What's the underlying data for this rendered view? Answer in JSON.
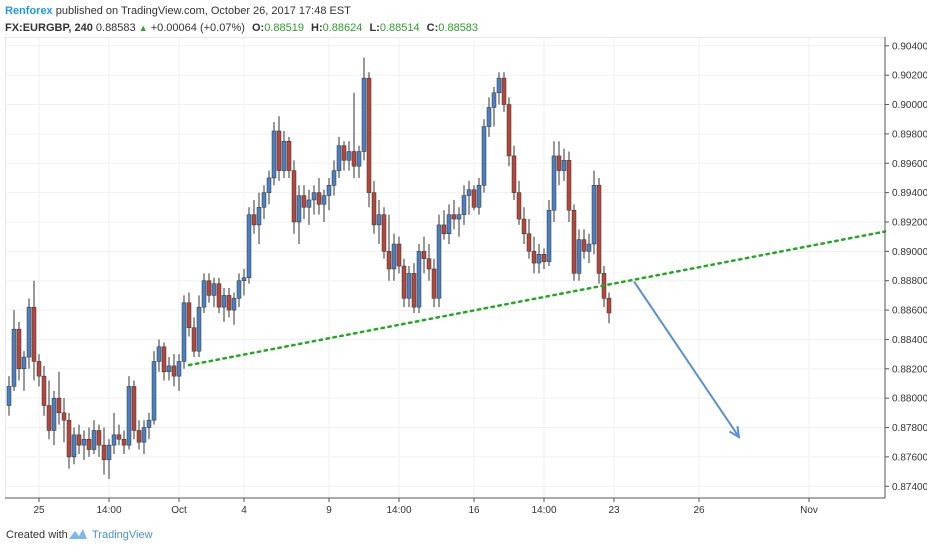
{
  "header": {
    "author": "Renforex",
    "published_text": "published on TradingView.com, October 26, 2017 17:48 EST"
  },
  "ticker": {
    "symbol": "FX:EURGBP, 240",
    "last": "0.88583",
    "change": "+0.00064 (+0.07%)",
    "o_label": "O:",
    "o": "0.88519",
    "h_label": "H:",
    "h": "0.88624",
    "l_label": "L:",
    "l": "0.88514",
    "c_label": "C:",
    "c": "0.88583"
  },
  "footer": {
    "created_with": "Created with",
    "brand": "TradingView"
  },
  "colors": {
    "up": "#4a7fc1",
    "down": "#b5463c",
    "trendline": "#22aa22",
    "arrow": "#5b8fd6",
    "grid": "#f0f0f0"
  },
  "chart_data": {
    "type": "candlestick",
    "title": "",
    "ylim": [
      0.8732,
      0.9046
    ],
    "y_ticks": [
      "0.90400",
      "0.90200",
      "0.90000",
      "0.89800",
      "0.89600",
      "0.89400",
      "0.89200",
      "0.89000",
      "0.88800",
      "0.88600",
      "0.88400",
      "0.88200",
      "0.88000",
      "0.87800",
      "0.87600",
      "0.87400"
    ],
    "x_ticks": [
      {
        "label": "25",
        "bar": 6
      },
      {
        "label": "14:00",
        "bar": 20
      },
      {
        "label": "Oct",
        "bar": 34
      },
      {
        "label": "4",
        "bar": 47
      },
      {
        "label": "9",
        "bar": 64
      },
      {
        "label": "14:00",
        "bar": 78
      },
      {
        "label": "16",
        "bar": 93
      },
      {
        "label": "14:00",
        "bar": 107
      },
      {
        "label": "23",
        "bar": 121
      },
      {
        "label": "26",
        "bar": 138
      },
      {
        "label": "Nov",
        "bar": 160
      }
    ],
    "candles": [
      {
        "o": 0.8795,
        "h": 0.8815,
        "l": 0.8788,
        "c": 0.8808
      },
      {
        "o": 0.8808,
        "h": 0.886,
        "l": 0.8805,
        "c": 0.8847
      },
      {
        "o": 0.8847,
        "h": 0.8852,
        "l": 0.8812,
        "c": 0.882
      },
      {
        "o": 0.882,
        "h": 0.8832,
        "l": 0.8805,
        "c": 0.8828
      },
      {
        "o": 0.8828,
        "h": 0.8868,
        "l": 0.882,
        "c": 0.8862
      },
      {
        "o": 0.8862,
        "h": 0.888,
        "l": 0.8812,
        "c": 0.8825
      },
      {
        "o": 0.8825,
        "h": 0.883,
        "l": 0.8808,
        "c": 0.8815
      },
      {
        "o": 0.8815,
        "h": 0.8822,
        "l": 0.8788,
        "c": 0.8795
      },
      {
        "o": 0.8795,
        "h": 0.8812,
        "l": 0.8772,
        "c": 0.8778
      },
      {
        "o": 0.8778,
        "h": 0.8805,
        "l": 0.8768,
        "c": 0.88
      },
      {
        "o": 0.88,
        "h": 0.8818,
        "l": 0.8782,
        "c": 0.879
      },
      {
        "o": 0.879,
        "h": 0.88,
        "l": 0.877,
        "c": 0.8785
      },
      {
        "o": 0.8785,
        "h": 0.879,
        "l": 0.8752,
        "c": 0.876
      },
      {
        "o": 0.876,
        "h": 0.878,
        "l": 0.8755,
        "c": 0.8775
      },
      {
        "o": 0.8775,
        "h": 0.8782,
        "l": 0.8762,
        "c": 0.8768
      },
      {
        "o": 0.8768,
        "h": 0.8778,
        "l": 0.8758,
        "c": 0.8772
      },
      {
        "o": 0.8772,
        "h": 0.878,
        "l": 0.876,
        "c": 0.8765
      },
      {
        "o": 0.8765,
        "h": 0.8785,
        "l": 0.8762,
        "c": 0.8778
      },
      {
        "o": 0.8778,
        "h": 0.8782,
        "l": 0.876,
        "c": 0.8768
      },
      {
        "o": 0.8768,
        "h": 0.878,
        "l": 0.8748,
        "c": 0.8758
      },
      {
        "o": 0.8758,
        "h": 0.8772,
        "l": 0.8745,
        "c": 0.8768
      },
      {
        "o": 0.8768,
        "h": 0.879,
        "l": 0.8762,
        "c": 0.8775
      },
      {
        "o": 0.8775,
        "h": 0.8782,
        "l": 0.8768,
        "c": 0.8772
      },
      {
        "o": 0.8772,
        "h": 0.8778,
        "l": 0.8762,
        "c": 0.8768
      },
      {
        "o": 0.8768,
        "h": 0.8815,
        "l": 0.8765,
        "c": 0.8808
      },
      {
        "o": 0.8808,
        "h": 0.8812,
        "l": 0.8772,
        "c": 0.8778
      },
      {
        "o": 0.8778,
        "h": 0.8785,
        "l": 0.8765,
        "c": 0.877
      },
      {
        "o": 0.877,
        "h": 0.8785,
        "l": 0.8762,
        "c": 0.878
      },
      {
        "o": 0.878,
        "h": 0.879,
        "l": 0.8772,
        "c": 0.8785
      },
      {
        "o": 0.8785,
        "h": 0.8832,
        "l": 0.8782,
        "c": 0.8825
      },
      {
        "o": 0.8825,
        "h": 0.884,
        "l": 0.8818,
        "c": 0.8835
      },
      {
        "o": 0.8835,
        "h": 0.8838,
        "l": 0.8812,
        "c": 0.8818
      },
      {
        "o": 0.8818,
        "h": 0.8828,
        "l": 0.8812,
        "c": 0.8822
      },
      {
        "o": 0.8822,
        "h": 0.883,
        "l": 0.8808,
        "c": 0.8815
      },
      {
        "o": 0.8815,
        "h": 0.883,
        "l": 0.8805,
        "c": 0.8825
      },
      {
        "o": 0.8825,
        "h": 0.887,
        "l": 0.882,
        "c": 0.8865
      },
      {
        "o": 0.8865,
        "h": 0.8872,
        "l": 0.8842,
        "c": 0.8848
      },
      {
        "o": 0.8848,
        "h": 0.8855,
        "l": 0.8828,
        "c": 0.8832
      },
      {
        "o": 0.8832,
        "h": 0.887,
        "l": 0.8828,
        "c": 0.8862
      },
      {
        "o": 0.8862,
        "h": 0.8885,
        "l": 0.8858,
        "c": 0.888
      },
      {
        "o": 0.888,
        "h": 0.8885,
        "l": 0.8865,
        "c": 0.887
      },
      {
        "o": 0.887,
        "h": 0.8882,
        "l": 0.8862,
        "c": 0.8878
      },
      {
        "o": 0.8878,
        "h": 0.8882,
        "l": 0.8858,
        "c": 0.8862
      },
      {
        "o": 0.8862,
        "h": 0.8875,
        "l": 0.8852,
        "c": 0.887
      },
      {
        "o": 0.887,
        "h": 0.8875,
        "l": 0.8855,
        "c": 0.886
      },
      {
        "o": 0.886,
        "h": 0.8872,
        "l": 0.885,
        "c": 0.8868
      },
      {
        "o": 0.8868,
        "h": 0.8885,
        "l": 0.8862,
        "c": 0.888
      },
      {
        "o": 0.888,
        "h": 0.8888,
        "l": 0.887,
        "c": 0.8882
      },
      {
        "o": 0.8882,
        "h": 0.893,
        "l": 0.8878,
        "c": 0.8925
      },
      {
        "o": 0.8925,
        "h": 0.8935,
        "l": 0.8912,
        "c": 0.8918
      },
      {
        "o": 0.8918,
        "h": 0.894,
        "l": 0.8905,
        "c": 0.893
      },
      {
        "o": 0.893,
        "h": 0.8945,
        "l": 0.8922,
        "c": 0.894
      },
      {
        "o": 0.894,
        "h": 0.8955,
        "l": 0.8932,
        "c": 0.895
      },
      {
        "o": 0.895,
        "h": 0.8988,
        "l": 0.8945,
        "c": 0.8982
      },
      {
        "o": 0.8982,
        "h": 0.8992,
        "l": 0.8948,
        "c": 0.8955
      },
      {
        "o": 0.8955,
        "h": 0.8982,
        "l": 0.895,
        "c": 0.8975
      },
      {
        "o": 0.8975,
        "h": 0.8978,
        "l": 0.895,
        "c": 0.8955
      },
      {
        "o": 0.8955,
        "h": 0.8962,
        "l": 0.8912,
        "c": 0.892
      },
      {
        "o": 0.892,
        "h": 0.8945,
        "l": 0.8905,
        "c": 0.8938
      },
      {
        "o": 0.8938,
        "h": 0.8945,
        "l": 0.8922,
        "c": 0.893
      },
      {
        "o": 0.893,
        "h": 0.8942,
        "l": 0.8918,
        "c": 0.8935
      },
      {
        "o": 0.8935,
        "h": 0.8945,
        "l": 0.8925,
        "c": 0.894
      },
      {
        "o": 0.894,
        "h": 0.895,
        "l": 0.8925,
        "c": 0.8932
      },
      {
        "o": 0.8932,
        "h": 0.8942,
        "l": 0.892,
        "c": 0.8938
      },
      {
        "o": 0.8938,
        "h": 0.895,
        "l": 0.8928,
        "c": 0.8945
      },
      {
        "o": 0.8945,
        "h": 0.8962,
        "l": 0.8938,
        "c": 0.8955
      },
      {
        "o": 0.8955,
        "h": 0.8978,
        "l": 0.895,
        "c": 0.8972
      },
      {
        "o": 0.8972,
        "h": 0.8975,
        "l": 0.8955,
        "c": 0.8962
      },
      {
        "o": 0.8962,
        "h": 0.8975,
        "l": 0.8955,
        "c": 0.8968
      },
      {
        "o": 0.8968,
        "h": 0.9008,
        "l": 0.895,
        "c": 0.8958
      },
      {
        "o": 0.8958,
        "h": 0.8972,
        "l": 0.895,
        "c": 0.8968
      },
      {
        "o": 0.8968,
        "h": 0.9032,
        "l": 0.8962,
        "c": 0.9018
      },
      {
        "o": 0.9018,
        "h": 0.9022,
        "l": 0.893,
        "c": 0.894
      },
      {
        "o": 0.894,
        "h": 0.8948,
        "l": 0.8912,
        "c": 0.8918
      },
      {
        "o": 0.8918,
        "h": 0.8935,
        "l": 0.8905,
        "c": 0.8925
      },
      {
        "o": 0.8925,
        "h": 0.893,
        "l": 0.8895,
        "c": 0.89
      },
      {
        "o": 0.89,
        "h": 0.8925,
        "l": 0.888,
        "c": 0.8888
      },
      {
        "o": 0.8888,
        "h": 0.8912,
        "l": 0.888,
        "c": 0.8905
      },
      {
        "o": 0.8905,
        "h": 0.891,
        "l": 0.8885,
        "c": 0.889
      },
      {
        "o": 0.889,
        "h": 0.8895,
        "l": 0.8862,
        "c": 0.8868
      },
      {
        "o": 0.8868,
        "h": 0.889,
        "l": 0.8862,
        "c": 0.8885
      },
      {
        "o": 0.8885,
        "h": 0.8892,
        "l": 0.8858,
        "c": 0.8862
      },
      {
        "o": 0.8862,
        "h": 0.8905,
        "l": 0.8858,
        "c": 0.89
      },
      {
        "o": 0.89,
        "h": 0.891,
        "l": 0.8885,
        "c": 0.8895
      },
      {
        "o": 0.8895,
        "h": 0.8905,
        "l": 0.888,
        "c": 0.8888
      },
      {
        "o": 0.8888,
        "h": 0.8895,
        "l": 0.8862,
        "c": 0.8868
      },
      {
        "o": 0.8868,
        "h": 0.8925,
        "l": 0.8862,
        "c": 0.8918
      },
      {
        "o": 0.8918,
        "h": 0.8928,
        "l": 0.8908,
        "c": 0.8912
      },
      {
        "o": 0.8912,
        "h": 0.8932,
        "l": 0.8905,
        "c": 0.8925
      },
      {
        "o": 0.8925,
        "h": 0.8935,
        "l": 0.8915,
        "c": 0.8922
      },
      {
        "o": 0.8922,
        "h": 0.893,
        "l": 0.891,
        "c": 0.8925
      },
      {
        "o": 0.8925,
        "h": 0.8945,
        "l": 0.8918,
        "c": 0.8938
      },
      {
        "o": 0.8938,
        "h": 0.8948,
        "l": 0.8925,
        "c": 0.8942
      },
      {
        "o": 0.8942,
        "h": 0.8945,
        "l": 0.8928,
        "c": 0.893
      },
      {
        "o": 0.893,
        "h": 0.895,
        "l": 0.8925,
        "c": 0.8945
      },
      {
        "o": 0.8945,
        "h": 0.899,
        "l": 0.894,
        "c": 0.8985
      },
      {
        "o": 0.8985,
        "h": 0.9005,
        "l": 0.8978,
        "c": 0.8998
      },
      {
        "o": 0.8998,
        "h": 0.9012,
        "l": 0.8985,
        "c": 0.9008
      },
      {
        "o": 0.9008,
        "h": 0.9022,
        "l": 0.9,
        "c": 0.9018
      },
      {
        "o": 0.9018,
        "h": 0.9022,
        "l": 0.8995,
        "c": 0.9
      },
      {
        "o": 0.9,
        "h": 0.9005,
        "l": 0.8958,
        "c": 0.8965
      },
      {
        "o": 0.8965,
        "h": 0.8972,
        "l": 0.8935,
        "c": 0.894
      },
      {
        "o": 0.894,
        "h": 0.8948,
        "l": 0.8918,
        "c": 0.8922
      },
      {
        "o": 0.8922,
        "h": 0.893,
        "l": 0.8905,
        "c": 0.8912
      },
      {
        "o": 0.8912,
        "h": 0.8922,
        "l": 0.8895,
        "c": 0.89
      },
      {
        "o": 0.89,
        "h": 0.891,
        "l": 0.8885,
        "c": 0.8892
      },
      {
        "o": 0.8892,
        "h": 0.8905,
        "l": 0.8885,
        "c": 0.8898
      },
      {
        "o": 0.8898,
        "h": 0.8902,
        "l": 0.8888,
        "c": 0.8893
      },
      {
        "o": 0.8893,
        "h": 0.8935,
        "l": 0.889,
        "c": 0.8928
      },
      {
        "o": 0.8928,
        "h": 0.8975,
        "l": 0.892,
        "c": 0.8965
      },
      {
        "o": 0.8965,
        "h": 0.8975,
        "l": 0.8945,
        "c": 0.8955
      },
      {
        "o": 0.8955,
        "h": 0.897,
        "l": 0.8948,
        "c": 0.8962
      },
      {
        "o": 0.8962,
        "h": 0.8968,
        "l": 0.892,
        "c": 0.8928
      },
      {
        "o": 0.8928,
        "h": 0.8932,
        "l": 0.888,
        "c": 0.8885
      },
      {
        "o": 0.8885,
        "h": 0.8915,
        "l": 0.888,
        "c": 0.8908
      },
      {
        "o": 0.8908,
        "h": 0.8915,
        "l": 0.8895,
        "c": 0.89
      },
      {
        "o": 0.89,
        "h": 0.8912,
        "l": 0.8892,
        "c": 0.8905
      },
      {
        "o": 0.8905,
        "h": 0.8955,
        "l": 0.8898,
        "c": 0.8945
      },
      {
        "o": 0.8945,
        "h": 0.895,
        "l": 0.8878,
        "c": 0.8885
      },
      {
        "o": 0.8885,
        "h": 0.889,
        "l": 0.8862,
        "c": 0.8868
      },
      {
        "o": 0.8868,
        "h": 0.8872,
        "l": 0.8851,
        "c": 0.8858
      }
    ],
    "trendline": {
      "start": {
        "bar": 36,
        "y": 0.88225
      },
      "end": {
        "bar": 185,
        "y": 0.89135
      },
      "style": "dotted"
    },
    "arrow": {
      "start": {
        "bar": 125,
        "y": 0.88795
      },
      "end": {
        "bar": 146,
        "y": 0.87735
      }
    },
    "grid": true
  }
}
